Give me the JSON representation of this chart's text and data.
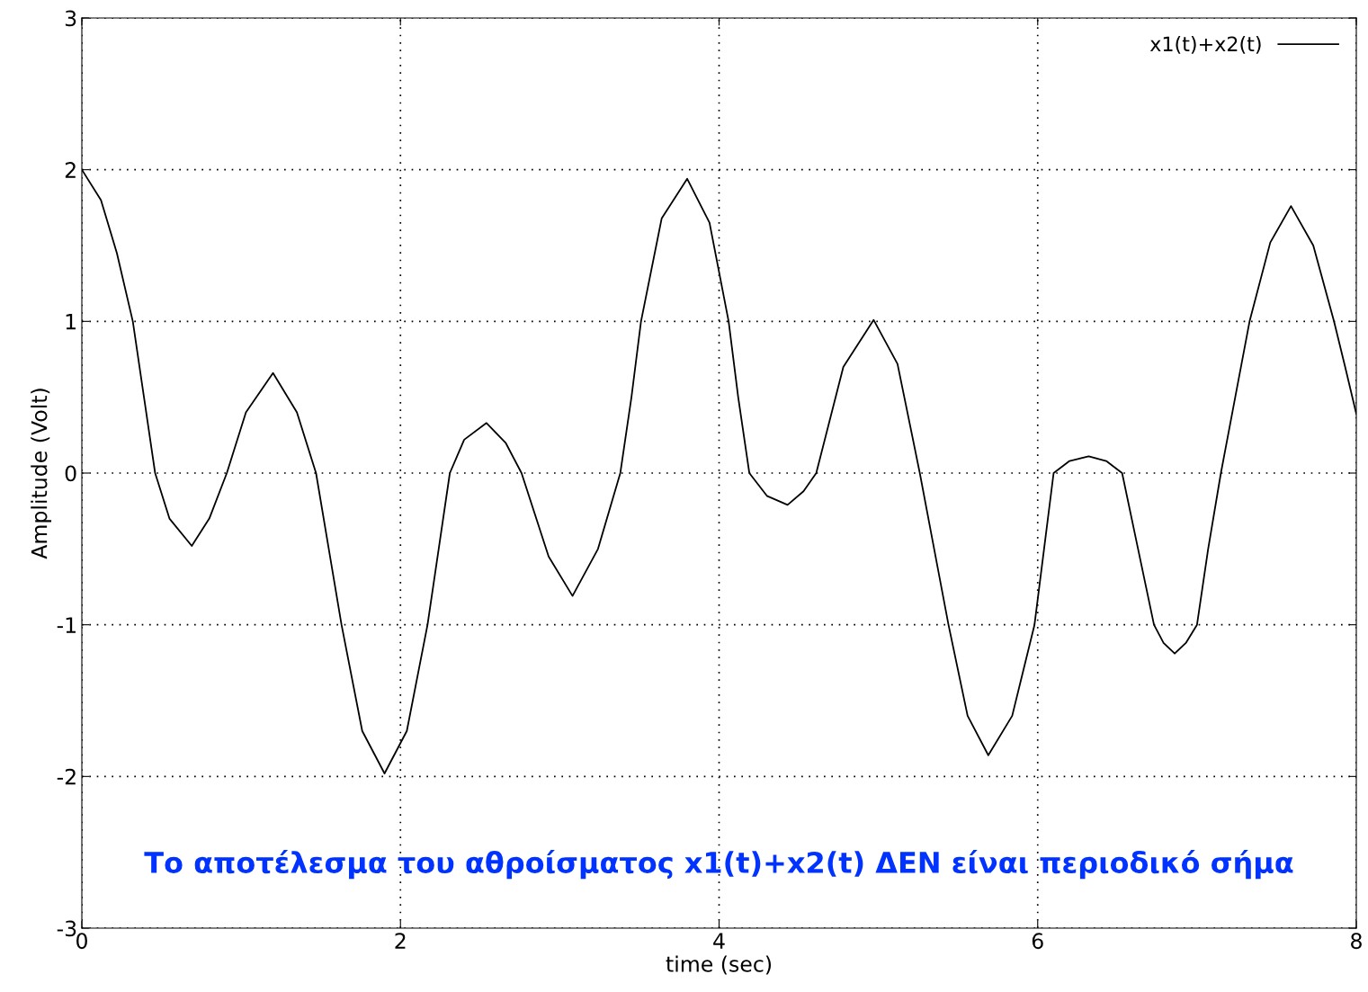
{
  "chart_data": {
    "type": "line",
    "xlabel": "time (sec)",
    "ylabel": "Amplitude (Volt)",
    "x": [
      0,
      0.12,
      0.22,
      0.32,
      0.39,
      0.46,
      0.55,
      0.69,
      0.8,
      0.91,
      1.03,
      1.2,
      1.35,
      1.47,
      1.55,
      1.63,
      1.76,
      1.9,
      2.04,
      2.17,
      2.24,
      2.31,
      2.4,
      2.54,
      2.66,
      2.76,
      2.93,
      3.08,
      3.24,
      3.38,
      3.45,
      3.51,
      3.64,
      3.8,
      3.94,
      4.06,
      4.12,
      4.19,
      4.3,
      4.43,
      4.53,
      4.61,
      4.78,
      4.97,
      5.12,
      5.26,
      5.35,
      5.44,
      5.56,
      5.69,
      5.84,
      5.98,
      6.04,
      6.1,
      6.2,
      6.32,
      6.43,
      6.53,
      6.63,
      6.73,
      6.79,
      6.86,
      6.93,
      7.0,
      7.07,
      7.15,
      7.24,
      7.33,
      7.46,
      7.59,
      7.73,
      7.86,
      7.93,
      8.0
    ],
    "series": [
      {
        "name": "x1(t)+x2(t)",
        "color": "#000000",
        "values": [
          2.0,
          1.8,
          1.45,
          1.0,
          0.5,
          0.0,
          -0.3,
          -0.48,
          -0.3,
          0.0,
          0.4,
          0.66,
          0.4,
          0.0,
          -0.5,
          -1.0,
          -1.7,
          -1.98,
          -1.7,
          -1.0,
          -0.5,
          0.0,
          0.22,
          0.33,
          0.2,
          0.0,
          -0.55,
          -0.81,
          -0.5,
          0.0,
          0.5,
          1.0,
          1.68,
          1.94,
          1.65,
          1.0,
          0.5,
          0.0,
          -0.15,
          -0.21,
          -0.12,
          0.0,
          0.7,
          1.01,
          0.72,
          0.0,
          -0.5,
          -1.0,
          -1.6,
          -1.86,
          -1.6,
          -1.0,
          -0.5,
          0.0,
          0.08,
          0.11,
          0.08,
          0.0,
          -0.5,
          -1.0,
          -1.12,
          -1.19,
          -1.12,
          -1.0,
          -0.5,
          0.0,
          0.5,
          1.0,
          1.52,
          1.76,
          1.5,
          1.0,
          0.7,
          0.39
        ]
      }
    ],
    "xlim": [
      0,
      8
    ],
    "xticks": [
      0,
      2,
      4,
      6,
      8
    ],
    "ylim": [
      -3,
      3
    ],
    "yticks": [
      -3,
      -2,
      -1,
      0,
      1,
      2,
      3
    ],
    "grid": true,
    "legend": "top right",
    "line_style": "solid",
    "marker": "none",
    "annotations": [
      "Το αποτέλεσμα του αθροίσματος x1(t)+x2(t) ΔΕΝ είναι περιοδικό σήμα"
    ]
  }
}
